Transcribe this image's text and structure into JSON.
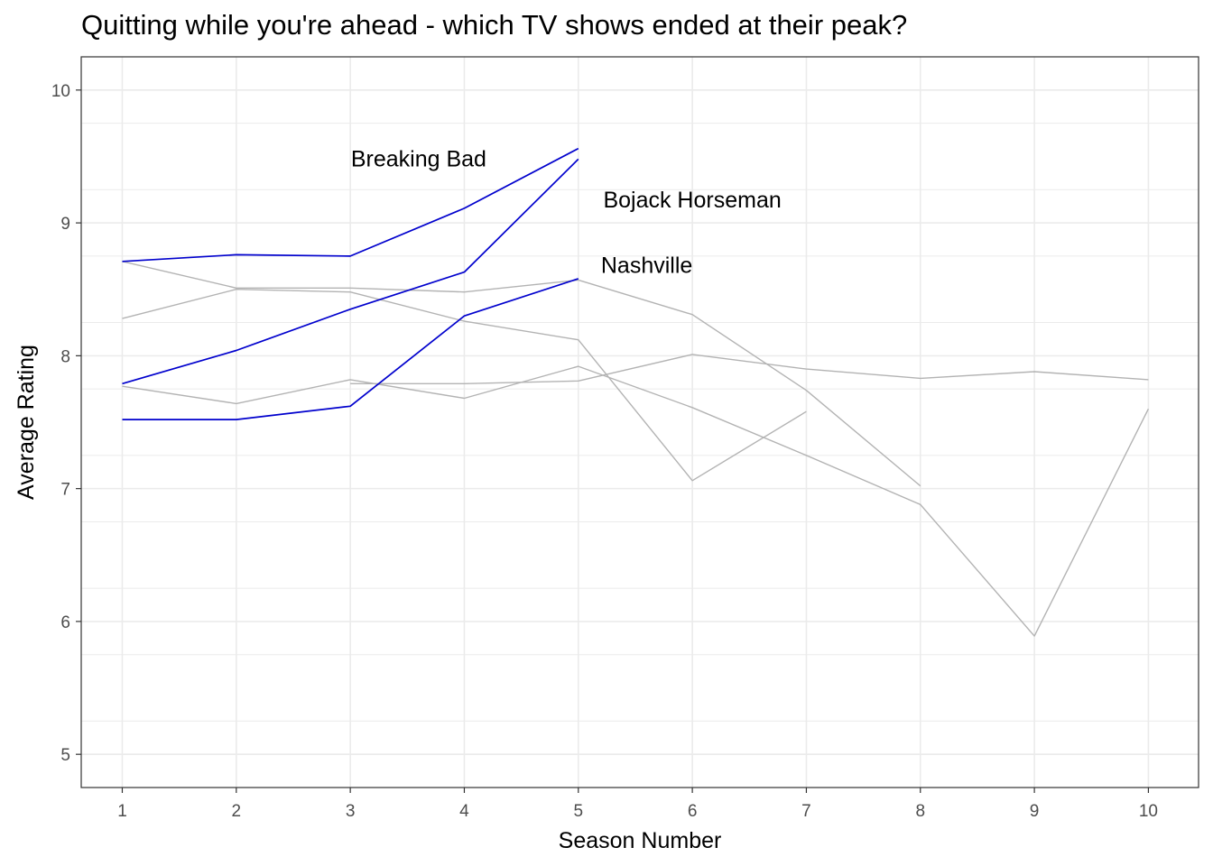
{
  "chart_data": {
    "type": "line",
    "title": "Quitting while you're ahead - which TV shows ended at their peak?",
    "xlabel": "Season Number",
    "ylabel": "Average Rating",
    "xlim": [
      0.64,
      10.44
    ],
    "ylim": [
      4.75,
      10.25
    ],
    "x_ticks": [
      1,
      2,
      3,
      4,
      5,
      6,
      7,
      8,
      9,
      10
    ],
    "y_ticks": [
      5,
      6,
      7,
      8,
      9,
      10
    ],
    "grid": true,
    "legend": "none",
    "colors": {
      "highlight": "#0000cd",
      "other": "#b3b3b3",
      "grid": "#ebebeb",
      "panel_border": "#333333"
    },
    "series": [
      {
        "highlight": true,
        "x": [
          1,
          2,
          3,
          4,
          5
        ],
        "y": [
          8.71,
          8.76,
          8.75,
          9.11,
          9.56
        ]
      },
      {
        "highlight": true,
        "x": [
          1,
          2,
          3,
          4,
          5
        ],
        "y": [
          7.79,
          8.04,
          8.35,
          8.63,
          9.48
        ]
      },
      {
        "highlight": true,
        "x": [
          1,
          2,
          3,
          4,
          5
        ],
        "y": [
          7.52,
          7.52,
          7.62,
          8.3,
          8.58
        ]
      },
      {
        "highlight": false,
        "x": [
          1,
          2,
          3,
          4,
          5,
          6,
          7,
          8
        ],
        "y": [
          8.71,
          8.51,
          8.51,
          8.48,
          8.57,
          8.31,
          7.74,
          7.02
        ]
      },
      {
        "highlight": false,
        "x": [
          1,
          2,
          3,
          4,
          5,
          6,
          7
        ],
        "y": [
          8.28,
          8.5,
          8.48,
          8.26,
          8.12,
          7.06,
          7.58
        ]
      },
      {
        "highlight": false,
        "x": [
          1,
          2,
          3,
          4,
          5,
          6,
          7,
          8,
          9,
          10
        ],
        "y": [
          7.77,
          7.64,
          7.82,
          7.68,
          7.92,
          7.61,
          7.25,
          6.88,
          5.89,
          7.6
        ]
      },
      {
        "highlight": false,
        "x": [
          3,
          4,
          5,
          6,
          7,
          8,
          9,
          10
        ],
        "y": [
          7.79,
          7.79,
          7.81,
          8.01,
          7.9,
          7.83,
          7.88,
          7.82
        ]
      }
    ],
    "annotations": [
      {
        "text": "Breaking Bad",
        "x": 3.6,
        "y": 9.47
      },
      {
        "text": "Bojack Horseman",
        "x": 6.0,
        "y": 9.16
      },
      {
        "text": "Nashville",
        "x": 5.6,
        "y": 8.67
      }
    ]
  }
}
